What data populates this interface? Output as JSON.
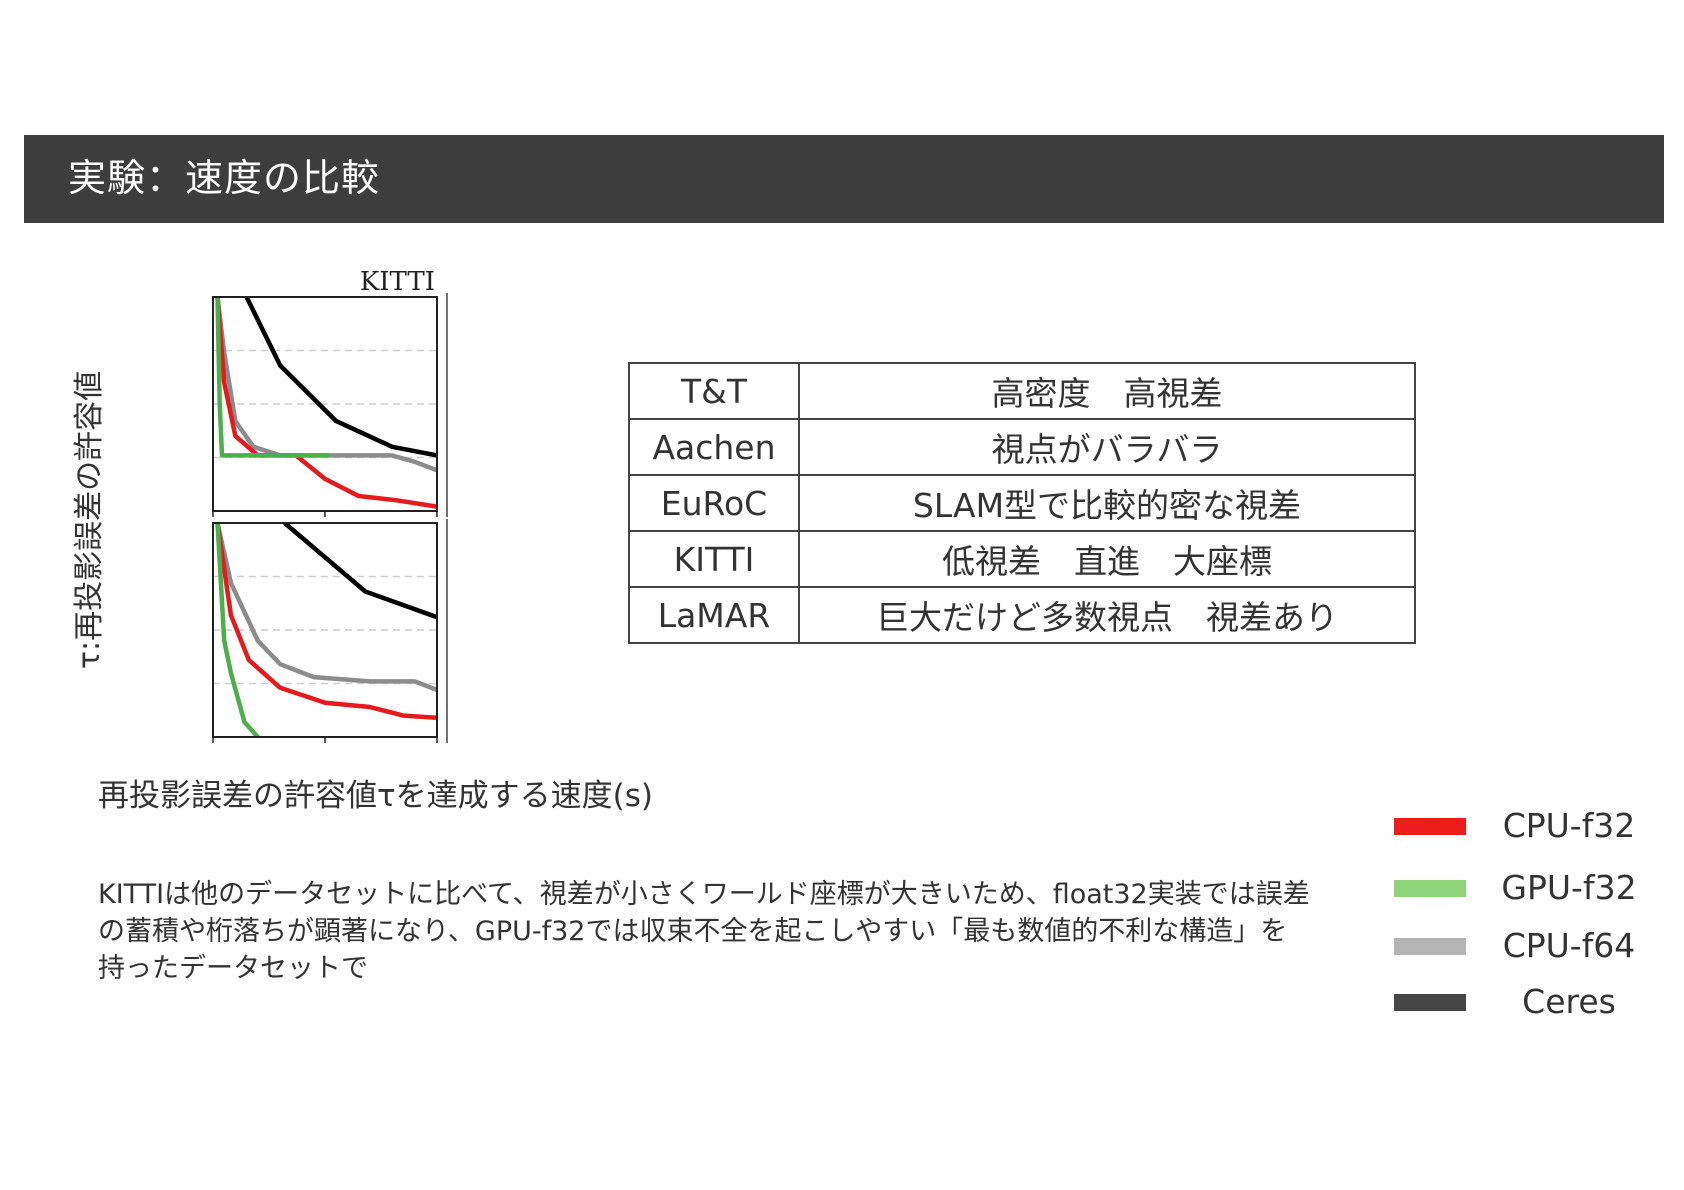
{
  "header": {
    "title": "実験：速度の比較"
  },
  "chart_data": {
    "type": "line",
    "title": "KITTI",
    "ylabel": "τ:再投影誤差の許容値",
    "xlabel": "再投影誤差の許容値τを達成する速度(s)",
    "legend_position": "bottom-right",
    "grid": "dashed horizontal lines",
    "legend": [
      {
        "name": "CPU-f32",
        "color": "#ee1c1c"
      },
      {
        "name": "GPU-f32",
        "color": "#8fd47a"
      },
      {
        "name": "CPU-f64",
        "color": "#b4b4b4"
      },
      {
        "name": "Ceres",
        "color": "#454545"
      }
    ],
    "panels": [
      {
        "xlim": [
          0,
          1
        ],
        "ylim": [
          0,
          1
        ],
        "series": [
          {
            "name": "Ceres",
            "color": "#000000",
            "points": [
              [
                0.15,
                1.0
              ],
              [
                0.3,
                0.68
              ],
              [
                0.55,
                0.42
              ],
              [
                0.8,
                0.3
              ],
              [
                1.0,
                0.26
              ]
            ]
          },
          {
            "name": "CPU-f64",
            "color": "#8c8c8c",
            "points": [
              [
                0.02,
                1.0
              ],
              [
                0.05,
                0.74
              ],
              [
                0.1,
                0.42
              ],
              [
                0.18,
                0.3
              ],
              [
                0.3,
                0.26
              ],
              [
                0.8,
                0.26
              ],
              [
                0.9,
                0.23
              ],
              [
                1.0,
                0.19
              ]
            ]
          },
          {
            "name": "CPU-f32",
            "color": "#e41a1c",
            "points": [
              [
                0.02,
                1.0
              ],
              [
                0.05,
                0.6
              ],
              [
                0.1,
                0.35
              ],
              [
                0.2,
                0.26
              ],
              [
                0.37,
                0.26
              ],
              [
                0.5,
                0.15
              ],
              [
                0.65,
                0.07
              ],
              [
                0.82,
                0.05
              ],
              [
                1.0,
                0.02
              ]
            ]
          },
          {
            "name": "GPU-f32",
            "color": "#4daf4a",
            "points": [
              [
                0.02,
                1.0
              ],
              [
                0.03,
                0.5
              ],
              [
                0.04,
                0.26
              ],
              [
                0.52,
                0.26
              ]
            ]
          }
        ]
      },
      {
        "xlim": [
          0,
          1
        ],
        "ylim": [
          0,
          1
        ],
        "series": [
          {
            "name": "Ceres",
            "color": "#000000",
            "points": [
              [
                0.32,
                1.0
              ],
              [
                0.68,
                0.68
              ],
              [
                1.0,
                0.56
              ]
            ]
          },
          {
            "name": "CPU-f64",
            "color": "#8c8c8c",
            "points": [
              [
                0.02,
                1.0
              ],
              [
                0.08,
                0.72
              ],
              [
                0.2,
                0.45
              ],
              [
                0.3,
                0.34
              ],
              [
                0.45,
                0.28
              ],
              [
                0.7,
                0.26
              ],
              [
                0.9,
                0.26
              ],
              [
                1.0,
                0.22
              ]
            ]
          },
          {
            "name": "CPU-f32",
            "color": "#e41a1c",
            "points": [
              [
                0.02,
                1.0
              ],
              [
                0.08,
                0.57
              ],
              [
                0.16,
                0.36
              ],
              [
                0.3,
                0.23
              ],
              [
                0.5,
                0.16
              ],
              [
                0.7,
                0.14
              ],
              [
                0.85,
                0.1
              ],
              [
                1.0,
                0.09
              ]
            ]
          },
          {
            "name": "GPU-f32",
            "color": "#4daf4a",
            "points": [
              [
                0.02,
                1.0
              ],
              [
                0.05,
                0.45
              ],
              [
                0.08,
                0.3
              ],
              [
                0.14,
                0.07
              ],
              [
                0.2,
                0.0
              ]
            ]
          }
        ]
      }
    ]
  },
  "table": {
    "rows": [
      {
        "name": "T&T",
        "desc": "高密度　高視差"
      },
      {
        "name": "Aachen",
        "desc": "視点がバラバラ"
      },
      {
        "name": "EuRoC",
        "desc": "SLAM型で比較的密な視差"
      },
      {
        "name": "KITTI",
        "desc": "低視差　直進　大座標"
      },
      {
        "name": "LaMAR",
        "desc": "巨大だけど多数視点　視差あり"
      }
    ]
  },
  "note": {
    "lines": [
      "KITTIは他のデータセットに比べて、視差が小さくワールド座標が大きいため、float32実装では誤差",
      "の蓄積や桁落ちが顕著になり、GPU-f32では収束不全を起こしやすい「最も数値的不利な構造」を",
      "持ったデータセットで"
    ]
  }
}
